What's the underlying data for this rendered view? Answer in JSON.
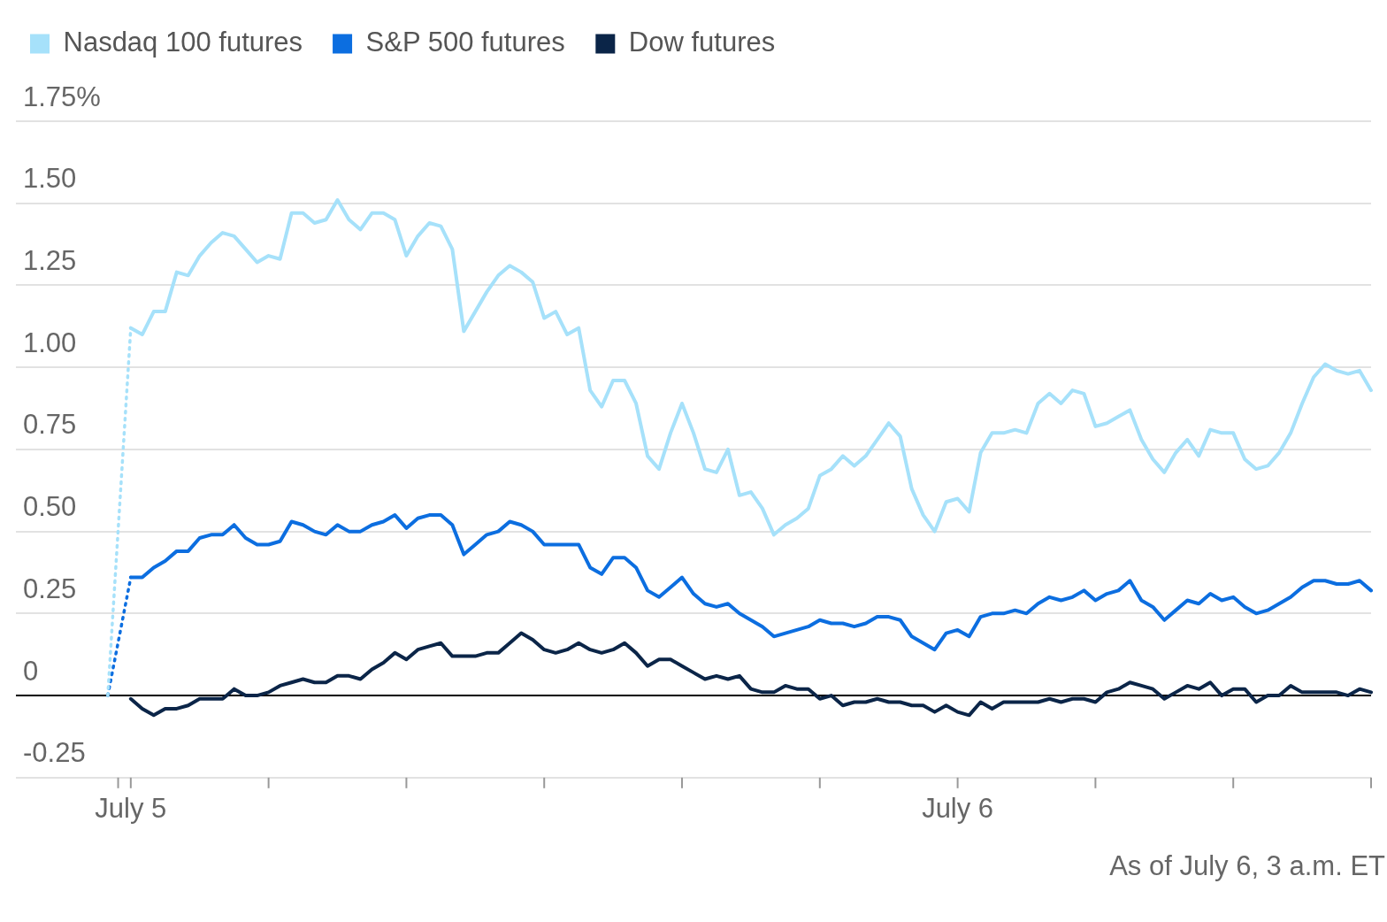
{
  "chart_data": {
    "type": "line",
    "annotations": [
      "As of July 6, 3 a.m. ET"
    ],
    "categories": [
      null,
      null,
      null,
      null,
      null,
      null,
      null,
      null,
      null,
      null,
      "July 5",
      null,
      null,
      null,
      null,
      null,
      null,
      null,
      null,
      null,
      null,
      null,
      null,
      null,
      null,
      null,
      null,
      null,
      null,
      null,
      null,
      null,
      null,
      null,
      null,
      null,
      null,
      null,
      null,
      null,
      null,
      null,
      null,
      null,
      null,
      null,
      null,
      null,
      null,
      null,
      null,
      null,
      null,
      null,
      null,
      null,
      null,
      null,
      null,
      null,
      null,
      null,
      null,
      null,
      null,
      null,
      null,
      null,
      null,
      null,
      null,
      null,
      null,
      null,
      null,
      null,
      null,
      null,
      null,
      null,
      null,
      null,
      "July 6",
      null,
      null,
      null,
      null,
      null,
      null,
      null,
      null,
      null,
      null,
      null,
      null,
      null,
      null,
      null,
      null,
      null,
      null,
      null,
      null,
      null,
      null,
      null,
      null,
      null,
      null,
      null,
      null,
      null,
      null,
      null,
      null,
      null,
      null,
      null,
      null
    ],
    "series": [
      {
        "name": "Nasdaq 100 futures",
        "color": "#a6e1fa",
        "values": [
          null,
          null,
          null,
          null,
          null,
          null,
          null,
          null,
          null,
          null,
          1.12,
          1.1,
          1.17,
          1.17,
          1.29,
          1.28,
          1.34,
          1.38,
          1.41,
          1.4,
          1.36,
          1.32,
          1.34,
          1.33,
          1.47,
          1.47,
          1.44,
          1.45,
          1.51,
          1.45,
          1.42,
          1.47,
          1.47,
          1.45,
          1.34,
          1.4,
          1.44,
          1.43,
          1.36,
          1.11,
          1.17,
          1.23,
          1.28,
          1.31,
          1.29,
          1.26,
          1.15,
          1.17,
          1.1,
          1.12,
          0.93,
          0.88,
          0.96,
          0.96,
          0.89,
          0.73,
          0.69,
          0.8,
          0.89,
          0.8,
          0.69,
          0.68,
          0.75,
          0.61,
          0.62,
          0.57,
          0.49,
          0.52,
          0.54,
          0.57,
          0.67,
          0.69,
          0.73,
          0.7,
          0.73,
          0.78,
          0.83,
          0.79,
          0.63,
          0.55,
          0.5,
          0.59,
          0.6,
          0.56,
          0.74,
          0.8,
          0.8,
          0.81,
          0.8,
          0.89,
          0.92,
          0.89,
          0.93,
          0.92,
          0.82,
          0.83,
          0.85,
          0.87,
          0.78,
          0.72,
          0.68,
          0.74,
          0.78,
          0.73,
          0.81,
          0.8,
          0.8,
          0.72,
          0.69,
          0.7,
          0.74,
          0.8,
          0.89,
          0.97,
          1.01,
          0.99,
          0.98,
          0.99,
          0.93
        ]
      },
      {
        "name": "S&P 500 futures",
        "color": "#0c6ee0",
        "values": [
          null,
          null,
          null,
          null,
          null,
          null,
          null,
          null,
          null,
          null,
          0.36,
          0.36,
          0.39,
          0.41,
          0.44,
          0.44,
          0.48,
          0.49,
          0.49,
          0.52,
          0.48,
          0.46,
          0.46,
          0.47,
          0.53,
          0.52,
          0.5,
          0.49,
          0.52,
          0.5,
          0.5,
          0.52,
          0.53,
          0.55,
          0.51,
          0.54,
          0.55,
          0.55,
          0.52,
          0.43,
          0.46,
          0.49,
          0.5,
          0.53,
          0.52,
          0.5,
          0.46,
          0.46,
          0.46,
          0.46,
          0.39,
          0.37,
          0.42,
          0.42,
          0.39,
          0.32,
          0.3,
          0.33,
          0.36,
          0.31,
          0.28,
          0.27,
          0.28,
          0.25,
          0.23,
          0.21,
          0.18,
          0.19,
          0.2,
          0.21,
          0.23,
          0.22,
          0.22,
          0.21,
          0.22,
          0.24,
          0.24,
          0.23,
          0.18,
          0.16,
          0.14,
          0.19,
          0.2,
          0.18,
          0.24,
          0.25,
          0.25,
          0.26,
          0.25,
          0.28,
          0.3,
          0.29,
          0.3,
          0.32,
          0.29,
          0.31,
          0.32,
          0.35,
          0.29,
          0.27,
          0.23,
          0.26,
          0.29,
          0.28,
          0.31,
          0.29,
          0.3,
          0.27,
          0.25,
          0.26,
          0.28,
          0.3,
          0.33,
          0.35,
          0.35,
          0.34,
          0.34,
          0.35,
          0.32
        ]
      },
      {
        "name": "Dow futures",
        "color": "#0b2548",
        "values": [
          null,
          null,
          null,
          null,
          null,
          null,
          null,
          null,
          null,
          null,
          -0.01,
          -0.04,
          -0.06,
          -0.04,
          -0.04,
          -0.03,
          -0.01,
          -0.01,
          -0.01,
          0.02,
          0,
          0,
          0.01,
          0.03,
          0.04,
          0.05,
          0.04,
          0.04,
          0.06,
          0.06,
          0.05,
          0.08,
          0.1,
          0.13,
          0.11,
          0.14,
          0.15,
          0.16,
          0.12,
          0.12,
          0.12,
          0.13,
          0.13,
          0.16,
          0.19,
          0.17,
          0.14,
          0.13,
          0.14,
          0.16,
          0.14,
          0.13,
          0.14,
          0.16,
          0.13,
          0.09,
          0.11,
          0.11,
          0.09,
          0.07,
          0.05,
          0.06,
          0.05,
          0.06,
          0.02,
          0.01,
          0.01,
          0.03,
          0.02,
          0.02,
          -0.01,
          0,
          -0.03,
          -0.02,
          -0.02,
          -0.01,
          -0.02,
          -0.02,
          -0.03,
          -0.03,
          -0.05,
          -0.03,
          -0.05,
          -0.06,
          -0.02,
          -0.04,
          -0.02,
          -0.02,
          -0.02,
          -0.02,
          -0.01,
          -0.02,
          -0.01,
          -0.01,
          -0.02,
          0.01,
          0.02,
          0.04,
          0.03,
          0.02,
          -0.01,
          0.01,
          0.03,
          0.02,
          0.04,
          0,
          0.02,
          0.02,
          -0.02,
          0,
          0,
          0.03,
          0.01,
          0.01,
          0.01,
          0.01,
          0,
          0.02,
          0.01
        ]
      },
      {
        "color": "#a6e1fa",
        "line_style": "dotted",
        "values": [
          null,
          null,
          null,
          null,
          null,
          null,
          null,
          null,
          0,
          null,
          1.12,
          null,
          null,
          null,
          null,
          null,
          null,
          null,
          null,
          null,
          null,
          null,
          null,
          null,
          null,
          null,
          null,
          null,
          null,
          null,
          null,
          null,
          null,
          null,
          null,
          null,
          null,
          null,
          null,
          null,
          null,
          null,
          null,
          null,
          null,
          null,
          null,
          null,
          null,
          null,
          null,
          null,
          null,
          null,
          null,
          null,
          null,
          null,
          null,
          null,
          null,
          null,
          null,
          null,
          null,
          null,
          null,
          null,
          null,
          null,
          null,
          null,
          null,
          null,
          null,
          null,
          null,
          null,
          null,
          null,
          null,
          null,
          null,
          null,
          null,
          null,
          null,
          null,
          null,
          null,
          null,
          null,
          null,
          null,
          null,
          null,
          null,
          null,
          null,
          null,
          null,
          null,
          null,
          null,
          null,
          null,
          null,
          null,
          null,
          null,
          null,
          null,
          null,
          null,
          null,
          null,
          null,
          null,
          null
        ]
      },
      {
        "color": "#0c6ee0",
        "line_style": "dotted",
        "values": [
          null,
          null,
          null,
          null,
          null,
          null,
          null,
          null,
          0,
          null,
          0.36,
          null,
          null,
          null,
          null,
          null,
          null,
          null,
          null,
          null,
          null,
          null,
          null,
          null,
          null,
          null,
          null,
          null,
          null,
          null,
          null,
          null,
          null,
          null,
          null,
          null,
          null,
          null,
          null,
          null,
          null,
          null,
          null,
          null,
          null,
          null,
          null,
          null,
          null,
          null,
          null,
          null,
          null,
          null,
          null,
          null,
          null,
          null,
          null,
          null,
          null,
          null,
          null,
          null,
          null,
          null,
          null,
          null,
          null,
          null,
          null,
          null,
          null,
          null,
          null,
          null,
          null,
          null,
          null,
          null,
          null,
          null,
          null,
          null,
          null,
          null,
          null,
          null,
          null,
          null,
          null,
          null,
          null,
          null,
          null,
          null,
          null,
          null,
          null,
          null,
          null,
          null,
          null,
          null,
          null,
          null,
          null,
          null,
          null,
          null,
          null,
          null,
          null,
          null,
          null,
          null,
          null,
          null,
          null
        ]
      }
    ],
    "ylim": [
      -0.25,
      1.75
    ],
    "yticks": [
      -0.25,
      0,
      0.25,
      {
        "value": 0.5,
        "label": "0.50"
      },
      0.75,
      {
        "value": 1,
        "label": "1.00"
      },
      1.25,
      {
        "value": 1.5,
        "label": "1.50"
      },
      {
        "value": 1.75,
        "label": "1.75%"
      }
    ],
    "ref_lines": [
      {
        "axis": "y",
        "value": 0,
        "color": "#000000"
      }
    ],
    "grid": "y",
    "legend": "top left",
    "marker": "none",
    "line_style": "solid"
  }
}
